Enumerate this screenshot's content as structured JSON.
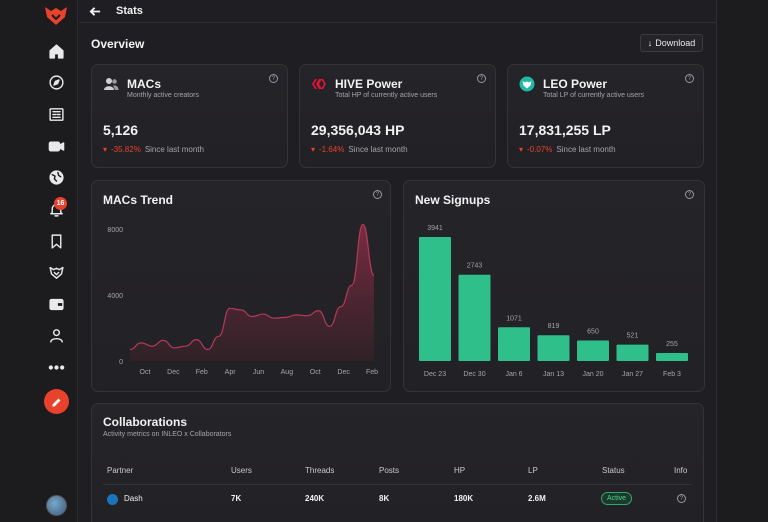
{
  "header": {
    "title": "Stats"
  },
  "overview": {
    "title": "Overview",
    "download_label": "Download"
  },
  "sidebar": {
    "notification_count": "16"
  },
  "stats": [
    {
      "title": "MACs",
      "subtitle": "Monthly active creators",
      "value": "5,126",
      "change": "-35.82%",
      "since": "Since last month"
    },
    {
      "title": "HIVE Power",
      "subtitle": "Total HP of currently active users",
      "value": "29,356,043 HP",
      "change": "-1.64%",
      "since": "Since last month"
    },
    {
      "title": "LEO Power",
      "subtitle": "Total LP of currently active users",
      "value": "17,831,255 LP",
      "change": "-0.07%",
      "since": "Since last month"
    }
  ],
  "colors": {
    "accent": "#e8422d",
    "bar": "#2fbf8a",
    "line": "#b33a58",
    "positive": "#4fd38b"
  },
  "chart_data": [
    {
      "type": "area",
      "title": "MACs Trend",
      "x_ticks": [
        "Oct",
        "Dec",
        "Feb",
        "Apr",
        "Jun",
        "Aug",
        "Oct",
        "Dec",
        "Feb"
      ],
      "y_ticks": [
        "0",
        "4000",
        "8000"
      ],
      "ylim": [
        0,
        8500
      ],
      "values": [
        700,
        1100,
        900,
        1250,
        800,
        900,
        1300,
        700,
        1500,
        3200,
        3100,
        2700,
        2850,
        2600,
        2650,
        2800,
        2750,
        3050,
        2100,
        3300,
        4600,
        8300,
        5200
      ]
    },
    {
      "type": "bar",
      "title": "New Signups",
      "categories": [
        "Dec 23",
        "Dec 30",
        "Jan 6",
        "Jan 13",
        "Jan 20",
        "Jan 27",
        "Feb 3"
      ],
      "values": [
        3941,
        2743,
        1071,
        819,
        650,
        521,
        255
      ]
    }
  ],
  "collaborations": {
    "title": "Collaborations",
    "subtitle": "Activity metrics on INLEO x Collaborators",
    "columns": [
      "Partner",
      "Users",
      "Threads",
      "Posts",
      "HP",
      "LP",
      "Status",
      "Info"
    ],
    "rows": [
      {
        "partner": "Dash",
        "users": "7K",
        "threads": "240K",
        "posts": "8K",
        "hp": "180K",
        "lp": "2.6M",
        "status": "Active"
      }
    ]
  }
}
